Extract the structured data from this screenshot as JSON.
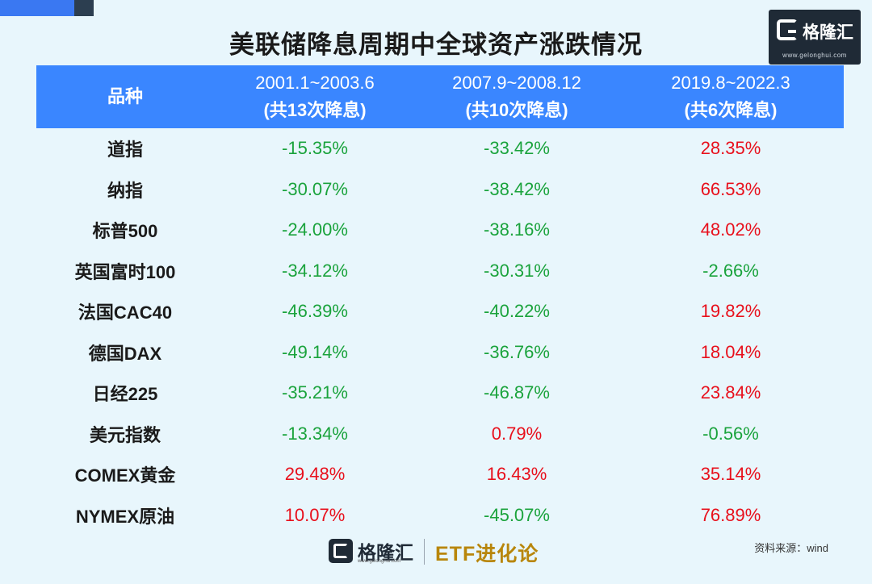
{
  "title": "美联储降息周期中全球资产涨跌情况",
  "logo": {
    "brand": "格隆汇",
    "url": "www.gelonghui.com"
  },
  "footer": {
    "brand": "格隆汇",
    "url": "www.gelonghui.com",
    "column": "ETF进化论",
    "source": "资料来源：wind"
  },
  "colors": {
    "header_bg": "#3a86ff",
    "negative": "#1aa33c",
    "positive": "#e8101c",
    "page_bg": "#e8f6fc"
  },
  "table": {
    "headers": [
      {
        "period": "品种",
        "sub": ""
      },
      {
        "period": "2001.1~2003.6",
        "sub": "(共13次降息)"
      },
      {
        "period": "2007.9~2008.12",
        "sub": "(共10次降息)"
      },
      {
        "period": "2019.8~2022.3",
        "sub": "(共6次降息)"
      }
    ],
    "rows": [
      {
        "name": "道指",
        "values": [
          "-15.35%",
          "-33.42%",
          "28.35%"
        ]
      },
      {
        "name": "纳指",
        "values": [
          "-30.07%",
          "-38.42%",
          "66.53%"
        ]
      },
      {
        "name": "标普500",
        "values": [
          "-24.00%",
          "-38.16%",
          "48.02%"
        ]
      },
      {
        "name": "英国富时100",
        "values": [
          "-34.12%",
          "-30.31%",
          "-2.66%"
        ]
      },
      {
        "name": "法国CAC40",
        "values": [
          "-46.39%",
          "-40.22%",
          "19.82%"
        ]
      },
      {
        "name": "德国DAX",
        "values": [
          "-49.14%",
          "-36.76%",
          "18.04%"
        ]
      },
      {
        "name": "日经225",
        "values": [
          "-35.21%",
          "-46.87%",
          "23.84%"
        ]
      },
      {
        "name": "美元指数",
        "values": [
          "-13.34%",
          "0.79%",
          "-0.56%"
        ]
      },
      {
        "name": "COMEX黄金",
        "values": [
          "29.48%",
          "16.43%",
          "35.14%"
        ]
      },
      {
        "name": "NYMEX原油",
        "values": [
          "10.07%",
          "-45.07%",
          "76.89%"
        ]
      }
    ]
  }
}
